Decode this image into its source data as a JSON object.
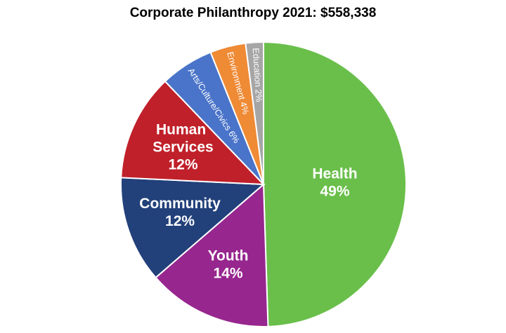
{
  "chart_data": {
    "type": "pie",
    "title": "Corporate Philanthropy 2021: $558,338",
    "categories": [
      "Health",
      "Youth",
      "Community",
      "Human Services",
      "Arts/Culture/Civics",
      "Environment",
      "Education"
    ],
    "values": [
      49,
      14,
      12,
      12,
      6,
      4,
      2
    ],
    "value_labels": [
      "49%",
      "14%",
      "12%",
      "12%",
      "6%",
      "4%",
      "2%"
    ],
    "colors": [
      "#6abf4b",
      "#97268f",
      "#22407a",
      "#c0202a",
      "#4a74c9",
      "#ef8a35",
      "#a6a6a6"
    ]
  }
}
